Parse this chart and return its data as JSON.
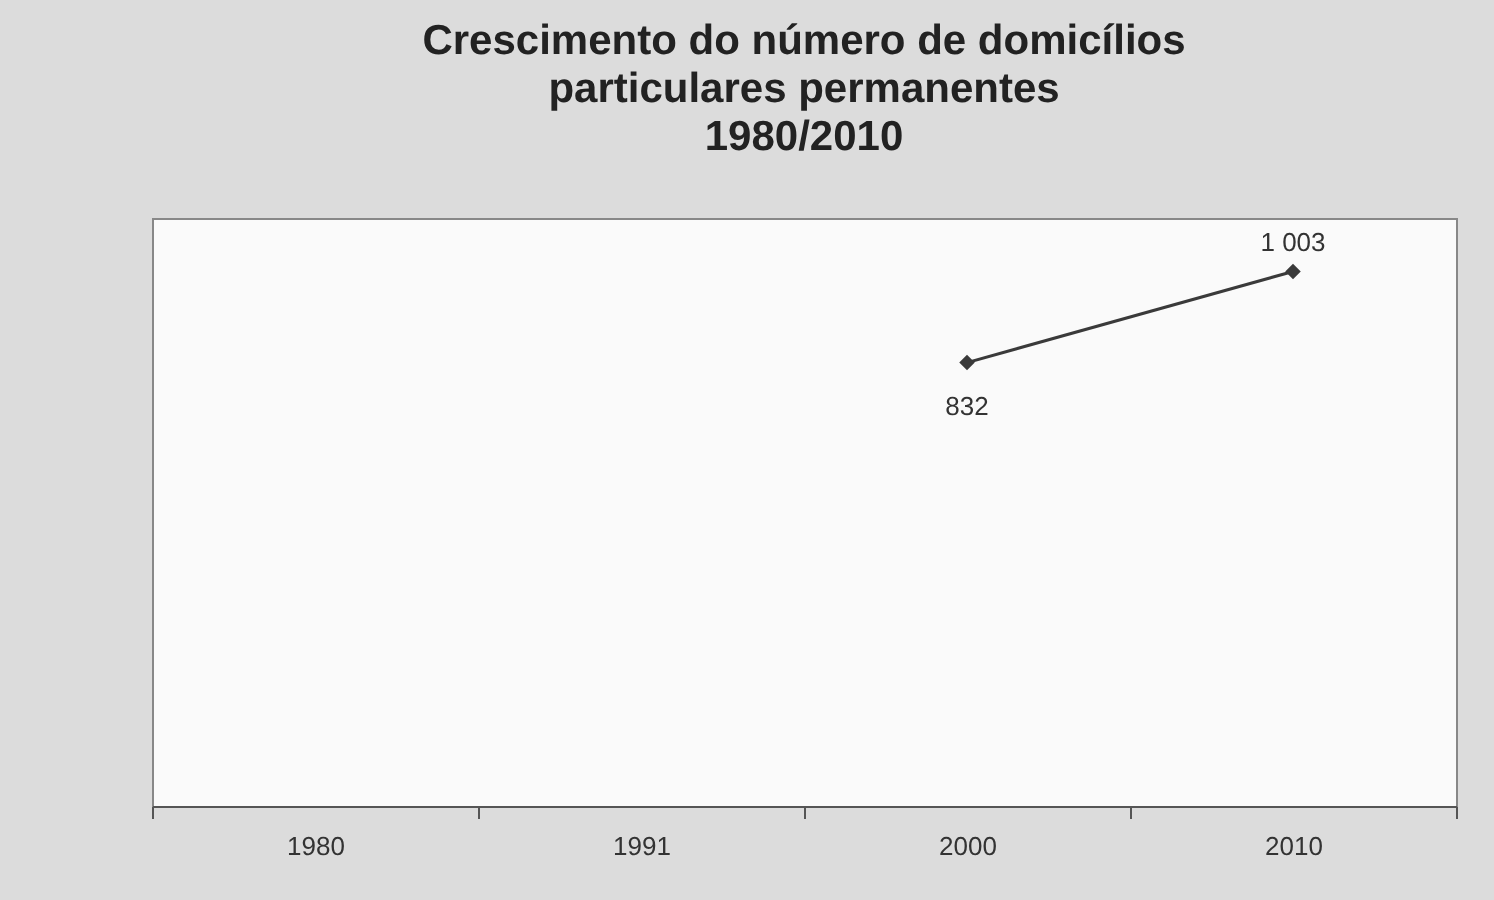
{
  "chart_data": {
    "type": "line",
    "title": "Crescimento do número de domicílios\nparticulares permanentes\n1980/2010",
    "categories": [
      "1980",
      "1991",
      "2000",
      "2010"
    ],
    "series": [
      {
        "color": "#3a3a3a",
        "values": [
          null,
          null,
          832,
          1003
        ],
        "value_labels": [
          null,
          null,
          "832",
          "1 003"
        ]
      }
    ],
    "marker": "diamond",
    "grid": false,
    "legend": false
  }
}
